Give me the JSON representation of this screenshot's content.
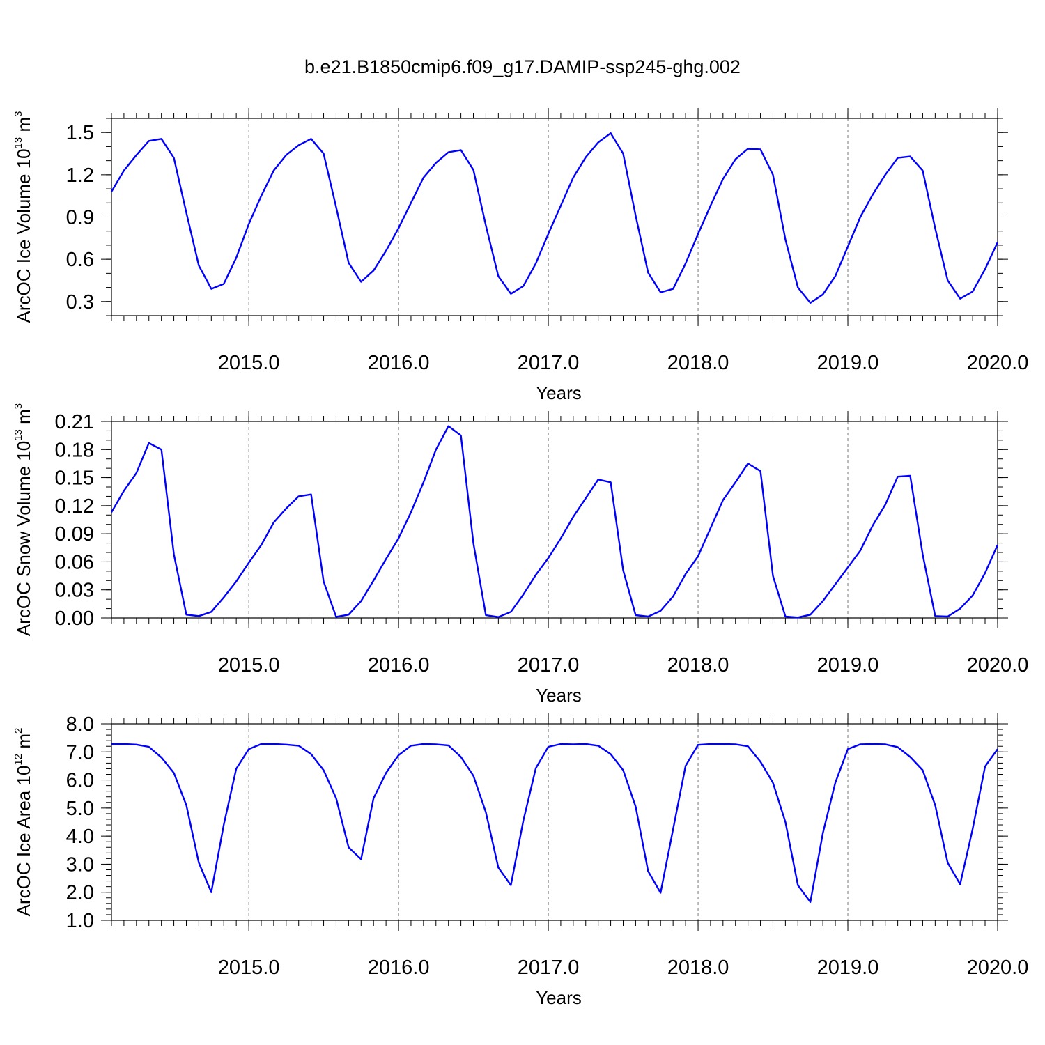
{
  "title": "b.e21.B1850cmip6.f09_g17.DAMIP-ssp245-ghg.002",
  "line_color": "#0000ff",
  "chart_data": [
    {
      "type": "line",
      "xlabel": "Years",
      "ylabel": {
        "main": "ArcOC Ice Volume 10",
        "exp": "13",
        "unit": " m",
        "unit_exp": "3"
      },
      "xlim": [
        2014.083,
        2020.0
      ],
      "ylim": [
        0.2,
        1.6
      ],
      "yticks": [
        0.3,
        0.6,
        0.9,
        1.2,
        1.5
      ],
      "ytick_labels": [
        "0.3",
        "0.6",
        "0.9",
        "1.2",
        "1.5"
      ],
      "y_minor": 0.1,
      "xticks": [
        2015.0,
        2016.0,
        2017.0,
        2018.0,
        2019.0,
        2020.0
      ],
      "xtick_labels": [
        "2015.0",
        "2016.0",
        "2017.0",
        "2018.0",
        "2019.0",
        "2020.0"
      ],
      "x_minor_step": 0.0833333,
      "grid": "vertical dashed at major x ticks",
      "x_start": 2014.083,
      "x_step": 0.0833333,
      "series": [
        {
          "values": [
            1.08,
            1.23,
            1.34,
            1.44,
            1.455,
            1.32,
            0.93,
            0.555,
            0.39,
            0.425,
            0.61,
            0.85,
            1.05,
            1.23,
            1.34,
            1.41,
            1.455,
            1.35,
            0.97,
            0.575,
            0.44,
            0.52,
            0.66,
            0.82,
            1.0,
            1.18,
            1.285,
            1.36,
            1.375,
            1.235,
            0.84,
            0.48,
            0.355,
            0.41,
            0.57,
            0.78,
            0.98,
            1.18,
            1.325,
            1.43,
            1.495,
            1.35,
            0.91,
            0.505,
            0.365,
            0.39,
            0.57,
            0.78,
            0.98,
            1.17,
            1.31,
            1.385,
            1.38,
            1.2,
            0.74,
            0.4,
            0.29,
            0.35,
            0.48,
            0.69,
            0.9,
            1.06,
            1.2,
            1.32,
            1.33,
            1.23,
            0.82,
            0.45,
            0.32,
            0.37,
            0.53,
            0.72
          ]
        }
      ]
    },
    {
      "type": "line",
      "xlabel": "Years",
      "ylabel": {
        "main": "ArcOC Snow Volume 10",
        "exp": "13",
        "unit": " m",
        "unit_exp": "3"
      },
      "xlim": [
        2014.083,
        2020.0
      ],
      "ylim": [
        0.0,
        0.21
      ],
      "yticks": [
        0.0,
        0.03,
        0.06,
        0.09,
        0.12,
        0.15,
        0.18,
        0.21
      ],
      "ytick_labels": [
        "0.00",
        "0.03",
        "0.06",
        "0.09",
        "0.12",
        "0.15",
        "0.18",
        "0.21"
      ],
      "y_minor": 0.01,
      "xticks": [
        2015.0,
        2016.0,
        2017.0,
        2018.0,
        2019.0,
        2020.0
      ],
      "xtick_labels": [
        "2015.0",
        "2016.0",
        "2017.0",
        "2018.0",
        "2019.0",
        "2020.0"
      ],
      "x_minor_step": 0.0833333,
      "grid": "vertical dashed at major x ticks",
      "x_start": 2014.083,
      "x_step": 0.0833333,
      "series": [
        {
          "values": [
            0.113,
            0.136,
            0.155,
            0.187,
            0.18,
            0.068,
            0.0035,
            0.002,
            0.0065,
            0.022,
            0.039,
            0.059,
            0.078,
            0.102,
            0.117,
            0.13,
            0.132,
            0.039,
            0.0012,
            0.0035,
            0.018,
            0.04,
            0.063,
            0.085,
            0.113,
            0.145,
            0.18,
            0.205,
            0.195,
            0.08,
            0.003,
            0.001,
            0.0065,
            0.025,
            0.046,
            0.064,
            0.085,
            0.108,
            0.128,
            0.148,
            0.145,
            0.051,
            0.003,
            0.0015,
            0.0075,
            0.023,
            0.047,
            0.066,
            0.096,
            0.126,
            0.145,
            0.165,
            0.157,
            0.045,
            0.0015,
            0.0005,
            0.0035,
            0.018,
            0.036,
            0.054,
            0.072,
            0.099,
            0.121,
            0.151,
            0.152,
            0.068,
            0.002,
            0.0015,
            0.01,
            0.024,
            0.048,
            0.078
          ]
        }
      ]
    },
    {
      "type": "line",
      "xlabel": "Years",
      "ylabel": {
        "main": "ArcOC Ice Area 10",
        "exp": "12",
        "unit": " m",
        "unit_exp": "2"
      },
      "xlim": [
        2014.083,
        2020.0
      ],
      "ylim": [
        1.0,
        8.0
      ],
      "yticks": [
        1.0,
        2.0,
        3.0,
        4.0,
        5.0,
        6.0,
        7.0,
        8.0
      ],
      "ytick_labels": [
        "1.0",
        "2.0",
        "3.0",
        "4.0",
        "5.0",
        "6.0",
        "7.0",
        "8.0"
      ],
      "y_minor": 0.2,
      "xticks": [
        2015.0,
        2016.0,
        2017.0,
        2018.0,
        2019.0,
        2020.0
      ],
      "xtick_labels": [
        "2015.0",
        "2016.0",
        "2017.0",
        "2018.0",
        "2019.0",
        "2020.0"
      ],
      "x_minor_step": 0.0833333,
      "grid": "vertical dashed at major x ticks",
      "x_start": 2014.083,
      "x_step": 0.0833333,
      "series": [
        {
          "values": [
            7.28,
            7.28,
            7.26,
            7.18,
            6.8,
            6.25,
            5.1,
            3.05,
            2.0,
            4.4,
            6.4,
            7.1,
            7.28,
            7.28,
            7.26,
            7.22,
            6.92,
            6.35,
            5.35,
            3.6,
            3.18,
            5.35,
            6.25,
            6.88,
            7.22,
            7.28,
            7.27,
            7.23,
            6.82,
            6.15,
            4.85,
            2.88,
            2.25,
            4.55,
            6.42,
            7.18,
            7.28,
            7.27,
            7.28,
            7.22,
            6.92,
            6.35,
            5.05,
            2.75,
            1.98,
            4.25,
            6.5,
            7.25,
            7.28,
            7.28,
            7.27,
            7.2,
            6.65,
            5.9,
            4.5,
            2.25,
            1.65,
            4.1,
            5.9,
            7.1,
            7.27,
            7.28,
            7.27,
            7.17,
            6.82,
            6.35,
            5.1,
            3.05,
            2.28,
            4.25,
            6.48,
            7.1
          ]
        }
      ]
    }
  ]
}
